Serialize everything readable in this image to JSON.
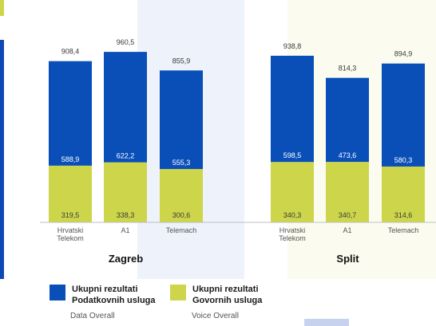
{
  "chart_data": {
    "type": "bar",
    "stacked": true,
    "groups": [
      {
        "name": "Zagreb",
        "categories": [
          "Hrvatski\nTelekom",
          "A1",
          "Telemach"
        ],
        "totals": [
          908.4,
          960.5,
          855.9
        ],
        "series": [
          {
            "name": "Ukupni rezultati Podatkovnih usluga",
            "values": [
              588.9,
              622.2,
              555.3
            ]
          },
          {
            "name": "Ukupni rezultati Govornih usluga",
            "values": [
              319.5,
              338.3,
              300.6
            ]
          }
        ]
      },
      {
        "name": "Split",
        "categories": [
          "Hrvatski\nTelekom",
          "A1",
          "Telemach"
        ],
        "totals": [
          938.8,
          814.3,
          894.9
        ],
        "series": [
          {
            "name": "Ukupni rezultati Podatkovnih usluga",
            "values": [
              598.5,
              473.6,
              580.3
            ]
          },
          {
            "name": "Ukupni rezultati Govornih usluga",
            "values": [
              340.3,
              340.7,
              314.6
            ]
          }
        ]
      }
    ],
    "legend": [
      {
        "title": "Ukupni rezultati\nPodatkovnih usluga",
        "subtitle": "Data Overall",
        "color": "#0a4fb8"
      },
      {
        "title": "Ukupni rezultati\nGovornih usluga",
        "subtitle": "Voice Overall",
        "color": "#cdd64a"
      }
    ],
    "ylim": [
      0,
      1000
    ],
    "grid": false,
    "legend_position": "bottom-left"
  },
  "colors": {
    "data": "#0a4fb8",
    "voice": "#cdd64a",
    "left_accent": "#1048b5",
    "top_accent": "#cdd64a",
    "highlight_band": "#eef2fb",
    "highlight_band_split": "#fbfcef"
  }
}
